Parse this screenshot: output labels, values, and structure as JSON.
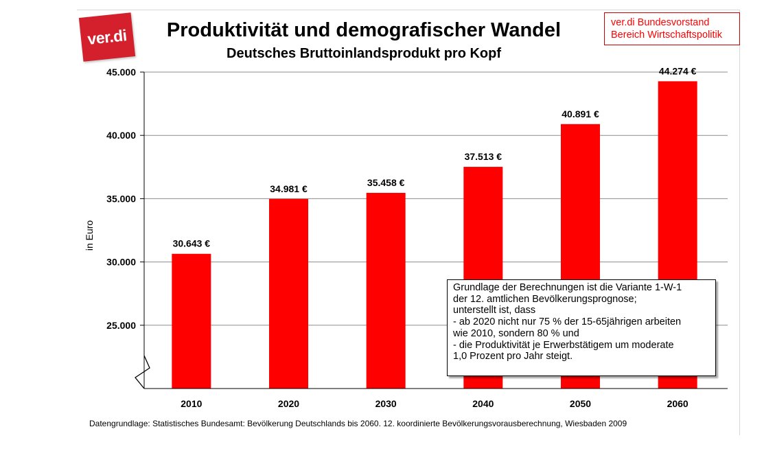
{
  "logo": {
    "text": "ver.di"
  },
  "header": {
    "title": "Produktivität und demografischer Wandel",
    "subtitle": "Deutsches Bruttoinlandsprodukt pro Kopf"
  },
  "org_box": {
    "line1": "ver.di Bundesvorstand",
    "line2": "Bereich Wirtschaftspolitik"
  },
  "chart_data": {
    "type": "bar",
    "title": "Produktivität und demografischer Wandel",
    "subtitle": "Deutsches Bruttoinlandsprodukt pro Kopf",
    "categories": [
      "2010",
      "2020",
      "2030",
      "2040",
      "2050",
      "2060"
    ],
    "values": [
      30643,
      34981,
      35458,
      37513,
      40891,
      44274
    ],
    "value_labels": [
      "30.643 €",
      "34.981 €",
      "35.458 €",
      "37.513 €",
      "40.891 €",
      "44.274 €"
    ],
    "xlabel": "",
    "ylabel": "in Euro",
    "ylim": [
      20000,
      45000
    ],
    "yticks": [
      25000,
      30000,
      35000,
      40000,
      45000
    ],
    "ytick_labels": [
      "25.000",
      "30.000",
      "35.000",
      "40.000",
      "45.000"
    ],
    "axis_break": true,
    "grid": true,
    "bar_color": "#ff0000"
  },
  "note": {
    "lines": [
      "Grundlage der Berechnungen ist die Variante 1-W-1",
      "der 12. amtlichen Bevölkerungsprognose;",
      "unterstellt ist, dass",
      "- ab 2020 nicht nur 75 % der 15-65jährigen arbeiten",
      "wie 2010, sondern 80 % und",
      "- die Produktivität je Erwerbstätigem um moderate",
      "1,0 Prozent pro Jahr steigt."
    ]
  },
  "source": "Datengrundlage: Statistisches Bundesamt: Bevölkerung Deutschlands bis 2060. 12. koordinierte Bevölkerungsvorausberechnung, Wiesbaden 2009"
}
